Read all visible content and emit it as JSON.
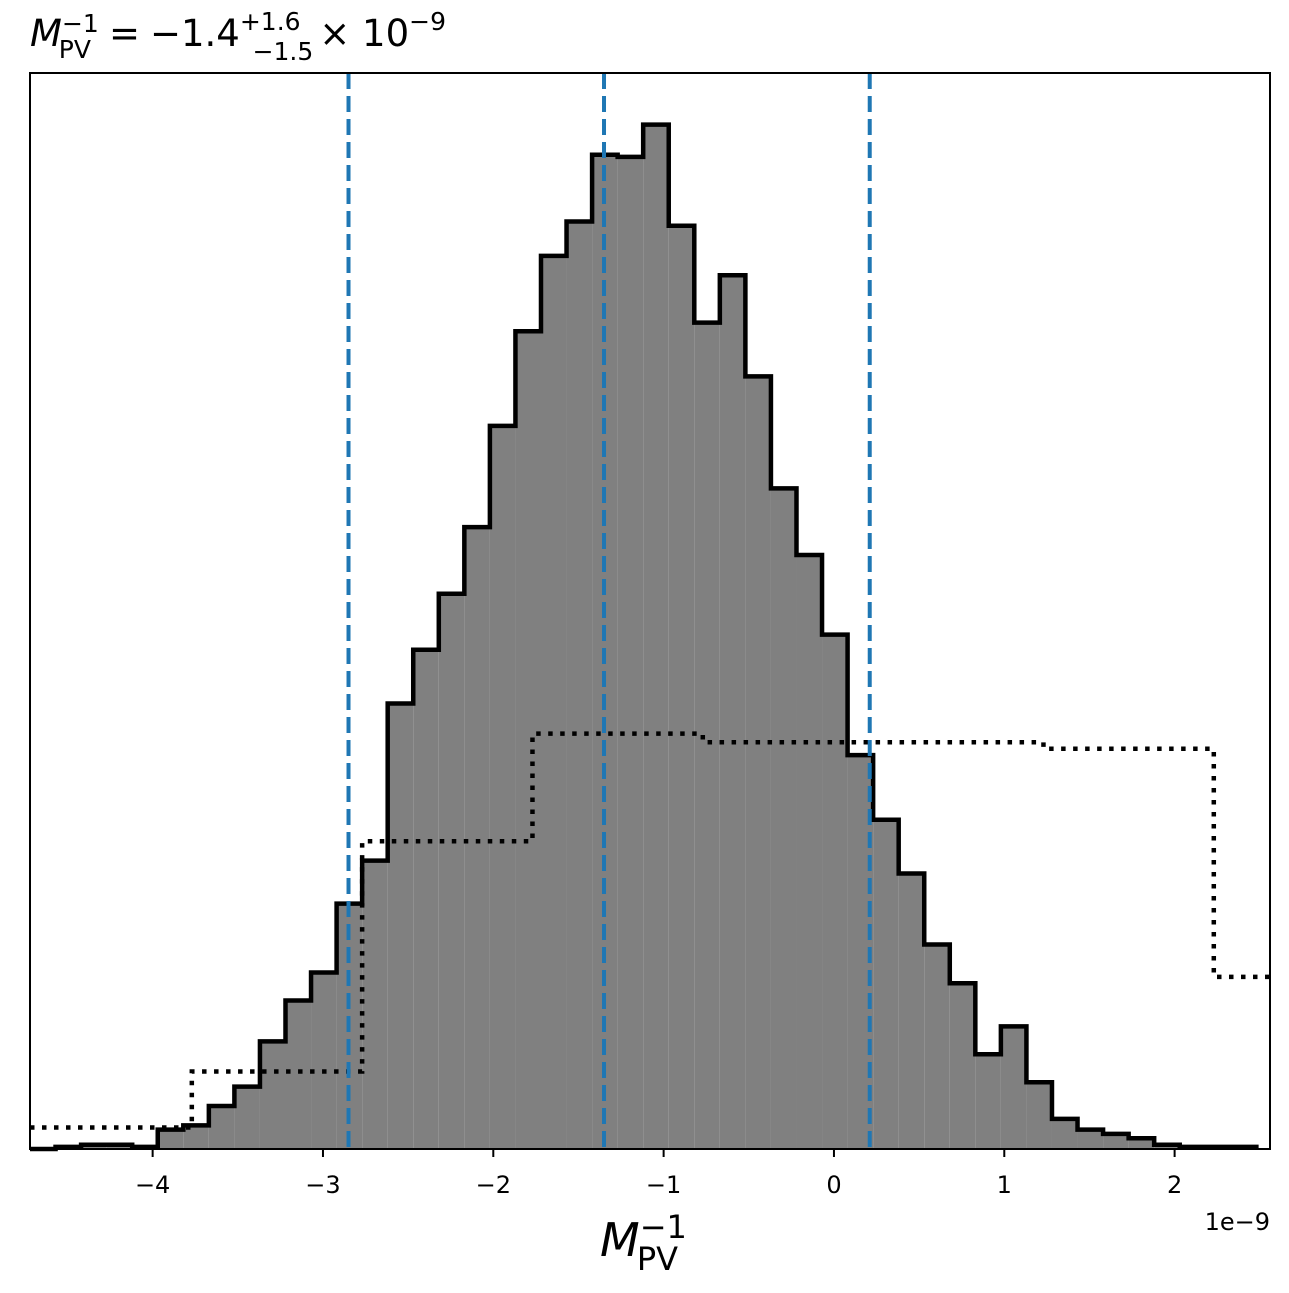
{
  "chart_data": {
    "type": "histogram",
    "title": {
      "lhs_symbol": "M",
      "lhs_subscript": "PV",
      "lhs_superscript": "−1",
      "equals": "=",
      "value": "−1.4",
      "upper_err": "+1.6",
      "lower_err": "−1.5",
      "multiplier": "× 10",
      "multiplier_exp": "−9"
    },
    "xlabel": {
      "symbol": "M",
      "subscript": "PV",
      "superscript": "−1"
    },
    "x_offset_label": "1e−9",
    "xlim": [
      -4.72,
      2.56
    ],
    "ylim": [
      0,
      1.0
    ],
    "xticks": [
      {
        "value": -4,
        "label": "−4"
      },
      {
        "value": -3,
        "label": "−3"
      },
      {
        "value": -2,
        "label": "−2"
      },
      {
        "value": -1,
        "label": "−1"
      },
      {
        "value": 0,
        "label": "0"
      },
      {
        "value": 1,
        "label": "1"
      },
      {
        "value": 2,
        "label": "2"
      }
    ],
    "posterior": {
      "bin_edges": [
        -4.72,
        -4.57,
        -4.42,
        -4.27,
        -4.12,
        -3.97,
        -3.82,
        -3.67,
        -3.52,
        -3.37,
        -3.22,
        -3.07,
        -2.92,
        -2.77,
        -2.62,
        -2.47,
        -2.32,
        -2.17,
        -2.02,
        -1.87,
        -1.72,
        -1.57,
        -1.42,
        -1.27,
        -1.12,
        -0.97,
        -0.82,
        -0.67,
        -0.52,
        -0.37,
        -0.22,
        -0.07,
        0.08,
        0.23,
        0.38,
        0.53,
        0.68,
        0.83,
        0.98,
        1.13,
        1.28,
        1.43,
        1.58,
        1.73,
        1.88,
        2.03,
        2.18,
        2.33,
        2.48
      ],
      "counts": [
        0.0,
        0.002,
        0.004,
        0.004,
        0.002,
        0.018,
        0.022,
        0.04,
        0.058,
        0.1,
        0.138,
        0.164,
        0.228,
        0.268,
        0.414,
        0.464,
        0.516,
        0.578,
        0.672,
        0.76,
        0.83,
        0.862,
        0.924,
        0.922,
        0.952,
        0.858,
        0.768,
        0.812,
        0.718,
        0.614,
        0.552,
        0.478,
        0.366,
        0.306,
        0.256,
        0.19,
        0.154,
        0.088,
        0.114,
        0.062,
        0.028,
        0.018,
        0.014,
        0.01,
        0.004,
        0.002,
        0.002,
        0.002
      ]
    },
    "prior": {
      "bin_edges": [
        -4.72,
        -3.77,
        -2.77,
        -1.77,
        -0.77,
        1.23,
        2.23,
        2.56
      ],
      "counts": [
        0.02,
        0.072,
        0.286,
        0.386,
        0.378,
        0.372,
        0.16
      ]
    },
    "quantile_lines": [
      -2.85,
      -1.35,
      0.21
    ],
    "colors": {
      "posterior_fill": "#808080",
      "posterior_edge": "#000000",
      "prior_line": "#000000",
      "quantile_line": "#1f77b4"
    }
  }
}
